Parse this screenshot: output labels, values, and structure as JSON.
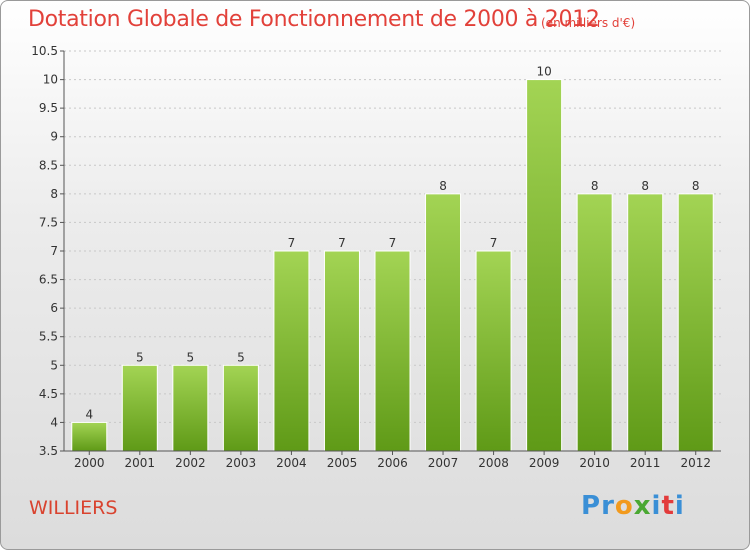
{
  "title": "Dotation Globale de Fonctionnement de 2000 à 2012",
  "subtitle": "(en milliers d'€)",
  "city": "WILLIERS",
  "brand": {
    "text": "Proxiti",
    "letters": [
      {
        "ch": "P",
        "color": "#3a8fd6"
      },
      {
        "ch": "r",
        "color": "#3a8fd6"
      },
      {
        "ch": "o",
        "color": "#f29a1d"
      },
      {
        "ch": "x",
        "color": "#4aa832"
      },
      {
        "ch": "i",
        "color": "#3a8fd6"
      },
      {
        "ch": "t",
        "color": "#e23b3b"
      },
      {
        "ch": "i",
        "color": "#3a8fd6"
      }
    ]
  },
  "colors": {
    "title": "#e2413a",
    "bar_top": "#a3d454",
    "bar_bottom": "#5f9a17",
    "grid": "#c8c8c8"
  },
  "chart_data": {
    "type": "bar",
    "title": "Dotation Globale de Fonctionnement de 2000 à 2012",
    "subtitle": "(en milliers d'€)",
    "categories": [
      "2000",
      "2001",
      "2002",
      "2003",
      "2004",
      "2005",
      "2006",
      "2007",
      "2008",
      "2009",
      "2010",
      "2011",
      "2012"
    ],
    "values": [
      4,
      5,
      5,
      5,
      7,
      7,
      7,
      8,
      7,
      10,
      8,
      8,
      8
    ],
    "ylim": [
      3.5,
      10.5
    ],
    "yticks": [
      "3.5",
      "4",
      "4.5",
      "5",
      "5.5",
      "6",
      "6.5",
      "7",
      "7.5",
      "8",
      "8.5",
      "9",
      "9.5",
      "10",
      "10.5"
    ],
    "grid": true,
    "xlabel": "",
    "ylabel": ""
  }
}
